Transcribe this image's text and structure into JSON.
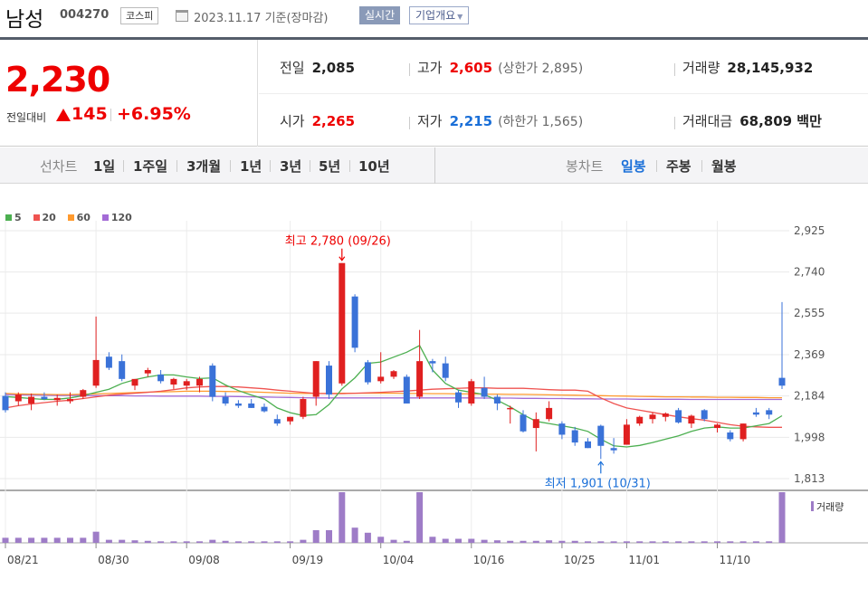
{
  "header": {
    "name": "남성",
    "code": "004270",
    "market": "코스피",
    "date_info": "2023.11.17  기준(장마감)",
    "realtime_label": "실시간",
    "company_label": "기업개요"
  },
  "price": {
    "current": "2,230",
    "change_label": "전일대비",
    "change": "145",
    "change_rate": "+6.95%"
  },
  "stats": {
    "prev_label": "전일",
    "prev": "2,085",
    "high_label": "고가",
    "high": "2,605",
    "upper_limit": "(상한가 2,895)",
    "volume_label": "거래량",
    "volume": "28,145,932",
    "open_label": "시가",
    "open": "2,265",
    "low_label": "저가",
    "low": "2,215",
    "lower_limit": "(하한가 1,565)",
    "amount_label": "거래대금",
    "amount": "68,809 백만"
  },
  "periods": {
    "line_label": "선차트",
    "line_items": [
      "1일",
      "1주일",
      "3개월",
      "1년",
      "3년",
      "5년",
      "10년"
    ],
    "candle_label": "봉차트",
    "candle_items": [
      "일봉",
      "주봉",
      "월봉"
    ],
    "active_candle": "일봉"
  },
  "chart_data": {
    "type": "candlestick",
    "legend": [
      "5",
      "20",
      "60",
      "120"
    ],
    "legend_colors": [
      "#4caf50",
      "#ef5350",
      "#ff9a2e",
      "#a36bd6"
    ],
    "up_color": "#e02020",
    "down_color": "#3a72d8",
    "y_ticks": [
      "2,925",
      "2,740",
      "2,555",
      "2,369",
      "2,184",
      "1,998",
      "1,813"
    ],
    "ylim": [
      1813,
      2925
    ],
    "x_ticks": [
      "08/21",
      "08/30",
      "09/08",
      "09/19",
      "10/04",
      "10/16",
      "10/25",
      "11/01",
      "11/10"
    ],
    "x_tick_index": [
      0,
      7,
      14,
      22,
      29,
      36,
      43,
      48,
      55
    ],
    "high_annotation": "최고 2,780 (09/26)",
    "low_annotation": "최저 1,901 (10/31)",
    "high_index": 26,
    "low_index": 46,
    "volume_label": "거래량",
    "ohlc": [
      [
        2184,
        2200,
        2110,
        2120
      ],
      [
        2160,
        2200,
        2140,
        2190
      ],
      [
        2150,
        2195,
        2120,
        2180
      ],
      [
        2180,
        2200,
        2165,
        2170
      ],
      [
        2165,
        2190,
        2140,
        2175
      ],
      [
        2160,
        2200,
        2150,
        2170
      ],
      [
        2180,
        2215,
        2170,
        2210
      ],
      [
        2230,
        2540,
        2220,
        2345
      ],
      [
        2360,
        2380,
        2300,
        2310
      ],
      [
        2340,
        2370,
        2250,
        2260
      ],
      [
        2230,
        2260,
        2210,
        2260
      ],
      [
        2285,
        2310,
        2270,
        2300
      ],
      [
        2280,
        2300,
        2240,
        2250
      ],
      [
        2235,
        2265,
        2215,
        2260
      ],
      [
        2230,
        2260,
        2210,
        2250
      ],
      [
        2230,
        2270,
        2200,
        2260
      ],
      [
        2320,
        2330,
        2160,
        2180
      ],
      [
        2180,
        2200,
        2140,
        2150
      ],
      [
        2150,
        2165,
        2130,
        2140
      ],
      [
        2150,
        2170,
        2130,
        2130
      ],
      [
        2135,
        2150,
        2110,
        2115
      ],
      [
        2080,
        2100,
        2050,
        2060
      ],
      [
        2070,
        2090,
        2055,
        2090
      ],
      [
        2090,
        2180,
        2080,
        2170
      ],
      [
        2180,
        2340,
        2140,
        2340
      ],
      [
        2320,
        2340,
        2170,
        2190
      ],
      [
        2240,
        2780,
        2230,
        2780
      ],
      [
        2630,
        2640,
        2380,
        2400
      ],
      [
        2335,
        2345,
        2235,
        2245
      ],
      [
        2250,
        2380,
        2240,
        2270
      ],
      [
        2270,
        2300,
        2260,
        2295
      ],
      [
        2270,
        2280,
        2150,
        2150
      ],
      [
        2180,
        2480,
        2170,
        2340
      ],
      [
        2340,
        2350,
        2290,
        2330
      ],
      [
        2330,
        2360,
        2250,
        2265
      ],
      [
        2200,
        2210,
        2130,
        2155
      ],
      [
        2150,
        2260,
        2140,
        2250
      ],
      [
        2220,
        2270,
        2170,
        2180
      ],
      [
        2180,
        2190,
        2120,
        2150
      ],
      [
        2130,
        2140,
        2060,
        2130
      ],
      [
        2100,
        2120,
        2020,
        2025
      ],
      [
        2040,
        2110,
        1935,
        2080
      ],
      [
        2080,
        2160,
        2070,
        2130
      ],
      [
        2060,
        2070,
        1990,
        2010
      ],
      [
        2030,
        2045,
        1960,
        1975
      ],
      [
        1980,
        1995,
        1950,
        1950
      ],
      [
        2050,
        2055,
        1901,
        1960
      ],
      [
        1950,
        1995,
        1925,
        1940
      ],
      [
        1965,
        2080,
        1965,
        2055
      ],
      [
        2060,
        2095,
        2050,
        2090
      ],
      [
        2080,
        2110,
        2060,
        2100
      ],
      [
        2090,
        2110,
        2070,
        2105
      ],
      [
        2120,
        2130,
        2060,
        2065
      ],
      [
        2060,
        2100,
        2040,
        2095
      ],
      [
        2120,
        2125,
        2070,
        2080
      ],
      [
        2040,
        2060,
        2020,
        2055
      ],
      [
        2020,
        2030,
        1980,
        1990
      ],
      [
        1990,
        2060,
        1980,
        2060
      ],
      [
        2110,
        2130,
        2090,
        2100
      ],
      [
        2120,
        2130,
        2080,
        2100
      ],
      [
        2265,
        2605,
        2215,
        2230
      ]
    ],
    "ma5": [
      2181,
      2177,
      2172,
      2168,
      2169,
      2175,
      2185,
      2200,
      2214,
      2240,
      2257,
      2269,
      2278,
      2278,
      2269,
      2262,
      2265,
      2233,
      2208,
      2188,
      2170,
      2130,
      2109,
      2096,
      2100,
      2145,
      2215,
      2265,
      2330,
      2336,
      2358,
      2380,
      2410,
      2300,
      2240,
      2210,
      2200,
      2190,
      2165,
      2135,
      2100,
      2070,
      2060,
      2050,
      2040,
      2025,
      1990,
      1960,
      1955,
      1962,
      1975,
      1990,
      2005,
      2025,
      2040,
      2045,
      2040,
      2040,
      2050,
      2060,
      2095
    ],
    "ma20": [
      2130,
      2140,
      2148,
      2154,
      2160,
      2165,
      2172,
      2180,
      2187,
      2192,
      2196,
      2200,
      2205,
      2212,
      2220,
      2224,
      2226,
      2226,
      2224,
      2220,
      2216,
      2210,
      2205,
      2200,
      2195,
      2194,
      2194,
      2196,
      2198,
      2200,
      2203,
      2206,
      2210,
      2214,
      2216,
      2218,
      2220,
      2220,
      2218,
      2218,
      2218,
      2215,
      2212,
      2210,
      2210,
      2205,
      2175,
      2150,
      2130,
      2120,
      2110,
      2100,
      2090,
      2082,
      2075,
      2065,
      2055,
      2048,
      2045,
      2043,
      2043
    ],
    "ma60": [
      2195,
      2193,
      2192,
      2191,
      2190,
      2190,
      2192,
      2193,
      2195,
      2197,
      2199,
      2201,
      2202,
      2203,
      2205,
      2205,
      2205,
      2204,
      2203,
      2202,
      2200,
      2198,
      2196,
      2195,
      2195,
      2195,
      2196,
      2196,
      2196,
      2196,
      2196,
      2195,
      2195,
      2194,
      2194,
      2193,
      2193,
      2192,
      2192,
      2191,
      2191,
      2190,
      2189,
      2188,
      2187,
      2186,
      2185,
      2184,
      2183,
      2182,
      2181,
      2180,
      2180,
      2179,
      2179,
      2178,
      2178,
      2177,
      2177,
      2176,
      2176
    ],
    "ma120": [
      2190,
      2189,
      2188,
      2187,
      2186,
      2186,
      2186,
      2185,
      2185,
      2185,
      2184,
      2184,
      2183,
      2183,
      2183,
      2183,
      2182,
      2182,
      2181,
      2180,
      2179,
      2178,
      2177,
      2176,
      2175,
      2175,
      2175,
      2175,
      2175,
      2175,
      2175,
      2175,
      2175,
      2175,
      2175,
      2175,
      2175,
      2174,
      2174,
      2174,
      2173,
      2173,
      2172,
      2172,
      2171,
      2171,
      2170,
      2170,
      2170,
      2169,
      2169,
      2169,
      2169,
      2168,
      2168,
      2168,
      2168,
      2168,
      2168,
      2168,
      2168
    ],
    "volume": [
      0.1,
      0.1,
      0.1,
      0.1,
      0.1,
      0.1,
      0.1,
      0.22,
      0.06,
      0.06,
      0.05,
      0.04,
      0.03,
      0.03,
      0.03,
      0.03,
      0.06,
      0.04,
      0.03,
      0.03,
      0.03,
      0.03,
      0.03,
      0.06,
      0.25,
      0.25,
      1.0,
      0.3,
      0.2,
      0.12,
      0.06,
      0.04,
      1.0,
      0.12,
      0.08,
      0.08,
      0.08,
      0.06,
      0.05,
      0.04,
      0.04,
      0.04,
      0.05,
      0.04,
      0.04,
      0.03,
      0.03,
      0.03,
      0.03,
      0.03,
      0.03,
      0.03,
      0.03,
      0.03,
      0.03,
      0.03,
      0.03,
      0.03,
      0.03,
      0.03,
      1.0
    ]
  }
}
